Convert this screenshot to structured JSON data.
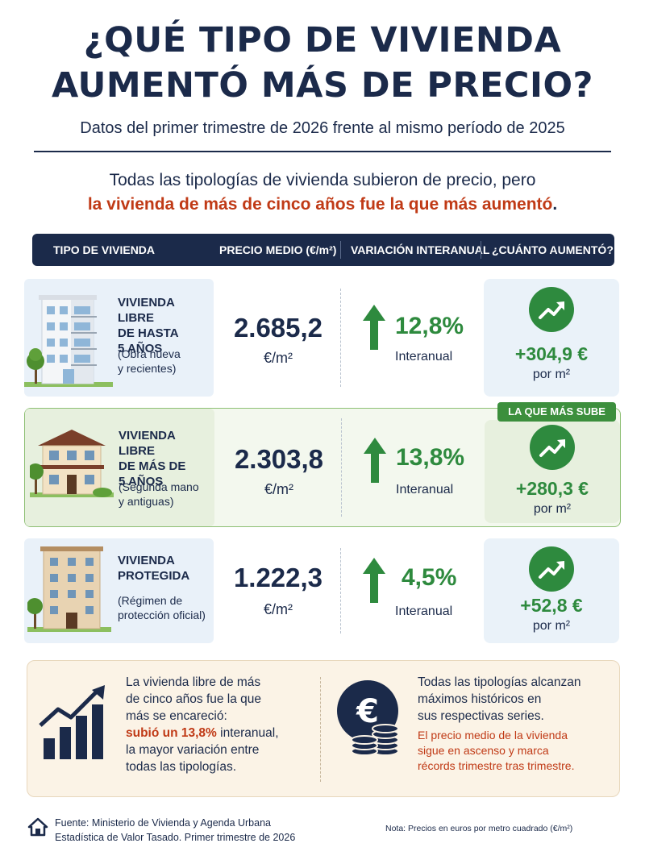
{
  "header": {
    "title_line1": "¿QUÉ TIPO DE VIVIENDA",
    "title_line2": "AUMENTÓ MÁS DE PRECIO?",
    "subtitle": "Datos del primer trimestre de 2026 frente al mismo período de 2025"
  },
  "intro": {
    "line1": "Todas las tipologías de vivienda subieron de precio, pero",
    "line2_highlight": "la vivienda de más de cinco años fue la que más aumentó",
    "line2_end": "."
  },
  "table": {
    "headers": [
      "TIPO DE VIVIENDA",
      "PRECIO MEDIO (€/m²)",
      "VARIACIÓN INTERANUAL",
      "¿CUÁNTO AUMENTÓ?"
    ],
    "rows": [
      {
        "name_l1": "VIVIENDA LIBRE",
        "name_l2": "DE HASTA",
        "name_l3": "5 AÑOS",
        "sub_l1": "(Obra nueva",
        "sub_l2": "y recientes)",
        "price": "2.685,2",
        "unit": "€/m²",
        "variation": "12,8%",
        "variation_label": "Interanual",
        "increase": "+304,9 €",
        "increase_unit": "por m²"
      },
      {
        "name_l1": "VIVIENDA LIBRE",
        "name_l2": "DE MÁS DE",
        "name_l3": "5 AÑOS",
        "sub_l1": "(Segunda mano",
        "sub_l2": "y antiguas)",
        "price": "2.303,8",
        "unit": "€/m²",
        "variation": "13,8%",
        "variation_label": "Interanual",
        "increase": "+280,3 €",
        "increase_unit": "por m²",
        "badge": "LA QUE MÁS SUBE"
      },
      {
        "name_l1": "VIVIENDA",
        "name_l2": "PROTEGIDA",
        "sub_l1": "(Régimen de",
        "sub_l2": "protección oficial)",
        "price": "1.222,3",
        "unit": "€/m²",
        "variation": "4,5%",
        "variation_label": "Interanual",
        "increase": "+52,8 €",
        "increase_unit": "por m²"
      }
    ]
  },
  "summary": {
    "left": {
      "l1": "La vivienda libre de más",
      "l2": "de cinco años fue la que",
      "l3": "más se encareció:",
      "l4_red": "subió un 13,8%",
      "l4_end": " interanual,",
      "l5": "la mayor variación entre",
      "l6": "todas las tipologías."
    },
    "right": {
      "l1": "Todas las tipologías alcanzan",
      "l2": "máximos históricos en",
      "l3": "sus respectivas series.",
      "l4": "El precio medio de la vivienda",
      "l5": "sigue en ascenso y marca",
      "l6": "récords trimestre tras trimestre."
    }
  },
  "footer": {
    "source_l1": "Fuente: Ministerio de Vivienda y Agenda Urbana",
    "source_l2": "Estadística de Valor Tasado. Primer trimestre de 2026",
    "note": "Nota: Precios en euros por metro cuadrado (€/m²)"
  },
  "colors": {
    "navy": "#1b2a4a",
    "green": "#2e8a3e",
    "red": "#c03a16"
  }
}
